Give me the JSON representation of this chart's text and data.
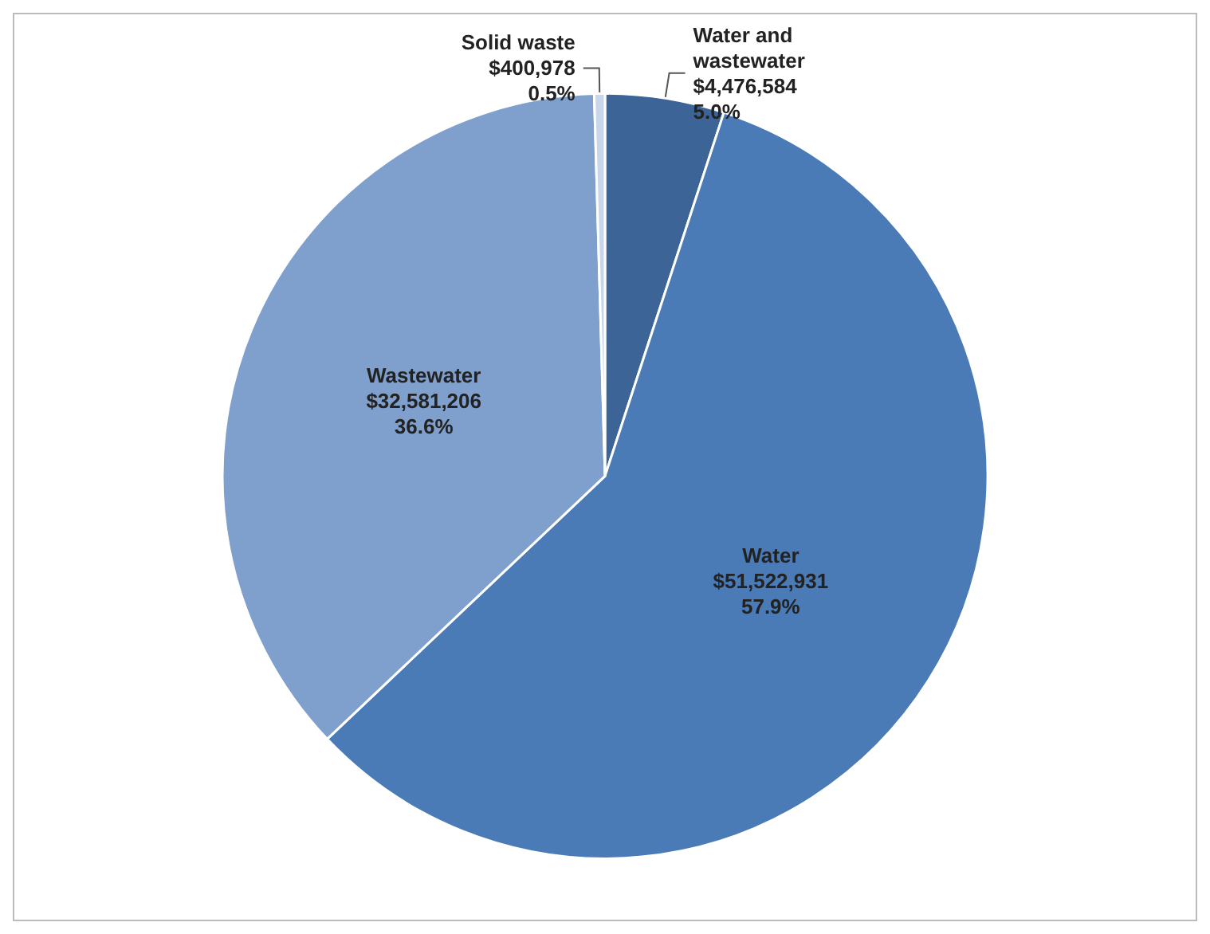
{
  "chart_data": {
    "type": "pie",
    "categories": [
      "Water and wastewater",
      "Water",
      "Wastewater",
      "Solid waste"
    ],
    "values": [
      4476584,
      51522931,
      32581206,
      400978
    ],
    "colors": [
      "#3c6496",
      "#4a7bb7",
      "#7f9fcc",
      "#c9d6ea"
    ],
    "value_labels": [
      "$4,476,584\n5.0%",
      "$51,522,931\n57.9%",
      "$32,581,206\n36.6%",
      "$400,978\n0.5%"
    ]
  }
}
